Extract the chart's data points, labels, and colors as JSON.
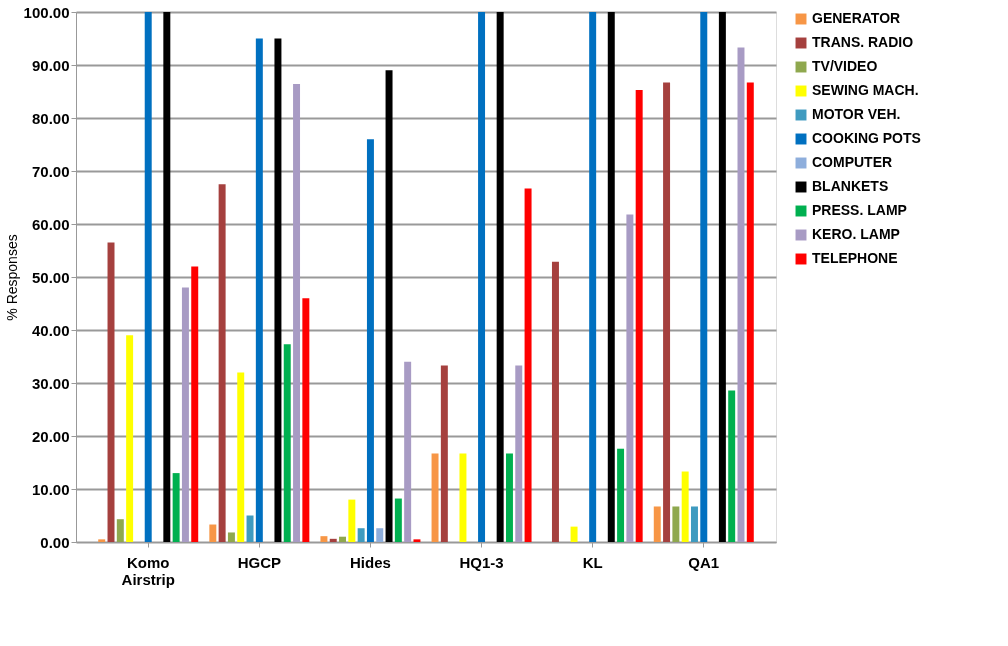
{
  "chart_data": {
    "type": "bar",
    "ylabel": "% Responses",
    "categories": [
      "Komo Airstrip",
      "HGCP",
      "Hides",
      "HQ1-3",
      "KL",
      "QA1"
    ],
    "series": [
      {
        "name": "GENERATOR",
        "color": "#f79646",
        "values": [
          0.5,
          3.3,
          1.1,
          16.7,
          0,
          6.7
        ]
      },
      {
        "name": "TRANS. RADIO",
        "color": "#a5403e",
        "values": [
          56.5,
          67.5,
          0.6,
          33.3,
          52.9,
          86.7
        ]
      },
      {
        "name": "TV/VIDEO",
        "color": "#8fa84e",
        "values": [
          4.3,
          1.8,
          1,
          0,
          0,
          6.7
        ]
      },
      {
        "name": "SEWING MACH.",
        "color": "#ffff00",
        "values": [
          39,
          32,
          8,
          16.7,
          2.9,
          13.3
        ]
      },
      {
        "name": "MOTOR VEH.",
        "color": "#3f9bc0",
        "values": [
          0,
          5,
          2.6,
          0,
          0,
          6.7
        ]
      },
      {
        "name": "COOKING POTS",
        "color": "#0070c0",
        "values": [
          100,
          95,
          76,
          100,
          100,
          100
        ]
      },
      {
        "name": "COMPUTER",
        "color": "#8eaedc",
        "values": [
          0,
          0,
          2.6,
          0,
          0,
          0
        ]
      },
      {
        "name": "BLANKETS",
        "color": "#000000",
        "values": [
          100,
          95,
          89,
          100,
          100,
          100
        ]
      },
      {
        "name": "PRESS. LAMP",
        "color": "#00b050",
        "values": [
          13,
          37.3,
          8.2,
          16.7,
          17.6,
          28.6
        ]
      },
      {
        "name": "KERO. LAMP",
        "color": "#a89bc4",
        "values": [
          48,
          86.4,
          34,
          33.3,
          61.8,
          93.3
        ]
      },
      {
        "name": "TELEPHONE",
        "color": "#ff0000",
        "values": [
          52,
          46,
          0.5,
          66.7,
          85.3,
          86.7
        ]
      }
    ],
    "ylim": [
      0,
      100
    ],
    "yticks": [
      {
        "value": 0,
        "label": "0.00"
      },
      {
        "value": 10,
        "label": "10.00"
      },
      {
        "value": 20,
        "label": "20.00"
      },
      {
        "value": 30,
        "label": "30.00"
      },
      {
        "value": 40,
        "label": "40.00"
      },
      {
        "value": 50,
        "label": "50.00"
      },
      {
        "value": 60,
        "label": "60.00"
      },
      {
        "value": 70,
        "label": "70.00"
      },
      {
        "value": 80,
        "label": "80.00"
      },
      {
        "value": 90,
        "label": "90.00"
      },
      {
        "value": 100,
        "label": "100.00"
      }
    ],
    "grid": "y",
    "legend": "right"
  }
}
